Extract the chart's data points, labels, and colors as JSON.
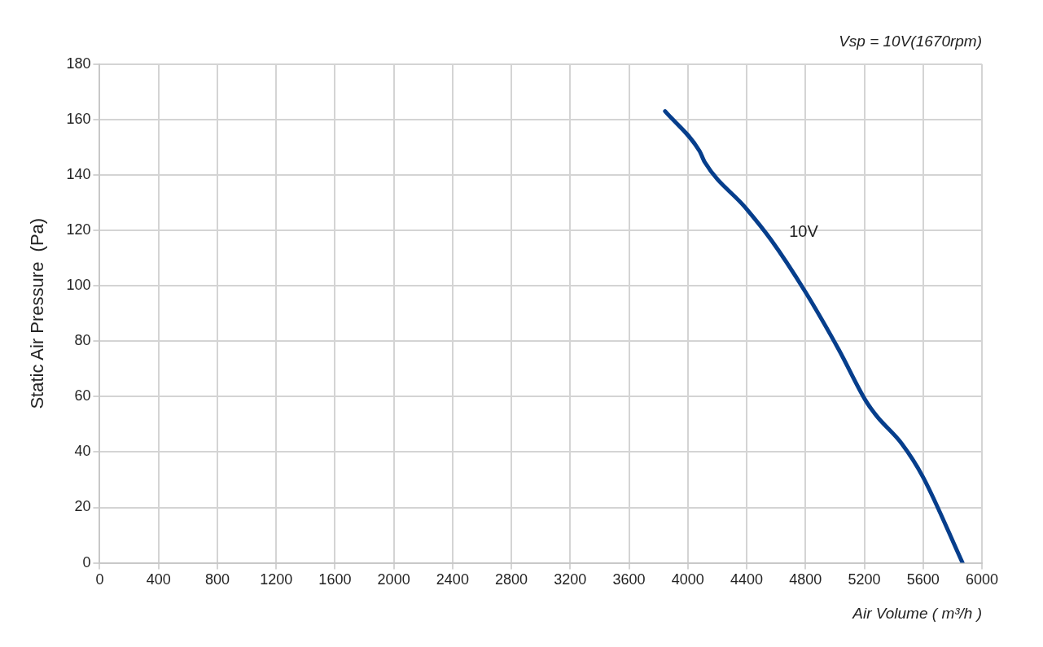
{
  "chart_data": {
    "type": "line",
    "title": "Vsp = 10V(1670rpm)",
    "xlabel": "Air Volume ( m³/h )",
    "ylabel": "Static Air Pressure  (Pa)",
    "series": [
      {
        "name": "10V",
        "color": "#063e8c",
        "x": [
          3845,
          4080,
          4115,
          4395,
          4567,
          4797,
          5026,
          5209,
          5284,
          5455,
          5599,
          5868
        ],
        "values": [
          163,
          148.6,
          144.6,
          128,
          116.5,
          98,
          77,
          58.6,
          53,
          43,
          31,
          0
        ]
      }
    ],
    "xlim": [
      0,
      6000
    ],
    "xticks": [
      0,
      400,
      800,
      1200,
      1600,
      2000,
      2400,
      2800,
      3200,
      3600,
      4000,
      4400,
      4800,
      5200,
      5600,
      6000
    ],
    "ylim": [
      0,
      180
    ],
    "yticks": [
      0,
      20,
      40,
      60,
      80,
      100,
      120,
      140,
      160,
      180
    ],
    "grid": true,
    "legend": false,
    "marker": "none",
    "line_style": "solid"
  }
}
